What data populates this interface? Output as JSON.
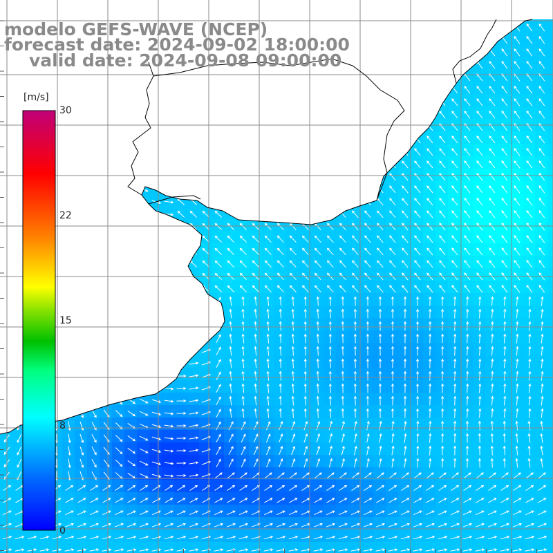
{
  "title": {
    "line1": "modelo GEFS-WAVE (NCEP)",
    "line2": "forecast date: 2024-09-02 18:00:00",
    "line3": "valid date: 2024-09-08 09:00:00"
  },
  "colorbar": {
    "unit": "[m/s]",
    "ticks": [
      "30",
      "22",
      "15",
      "8",
      "0"
    ],
    "range": [
      0,
      30
    ],
    "colors": [
      "#0000ff",
      "#00a0ff",
      "#00ffff",
      "#00ff80",
      "#00c000",
      "#ffff00",
      "#ff8000",
      "#ff0000",
      "#c0007a"
    ]
  },
  "map": {
    "quantity": "wind speed and direction",
    "land_color": "#ffffff",
    "grid_color": "#888888",
    "coast_color": "#000000",
    "arrow_color": "#ffffff"
  }
}
